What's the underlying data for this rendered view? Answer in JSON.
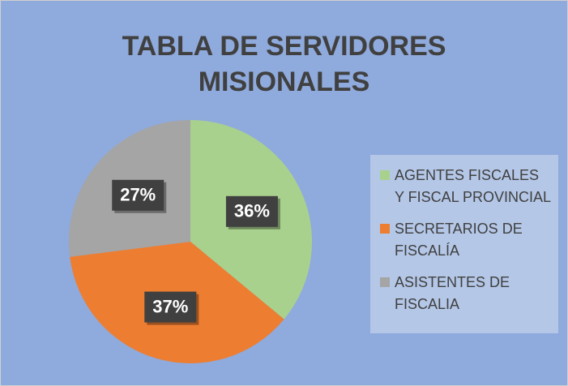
{
  "chart_data": {
    "type": "pie",
    "title": "TABLA DE SERVIDORES MISIONALES",
    "categories": [
      "AGENTES FISCALES Y FISCAL PROVINCIAL",
      "SECRETARIOS DE FISCALÍA",
      "ASISTENTES DE FISCALIA"
    ],
    "values": [
      36,
      37,
      27
    ],
    "value_labels": [
      "36%",
      "37%",
      "27%"
    ],
    "colors": [
      "#a9d18e",
      "#ed7d31",
      "#a5a5a5"
    ],
    "legend": "right"
  }
}
